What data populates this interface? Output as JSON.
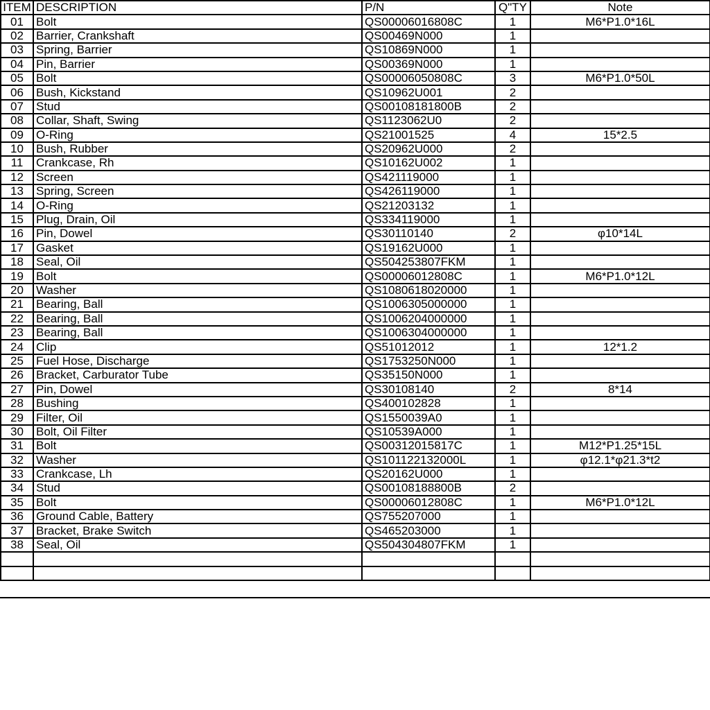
{
  "headers": {
    "item": "ITEM",
    "description": "DESCRIPTION",
    "pn": "P/N",
    "qty": "Q\"TY",
    "note": "Note"
  },
  "rows": [
    {
      "item": "01",
      "description": "Bolt",
      "pn": "QS00006016808C",
      "qty": "1",
      "note": "M6*P1.0*16L"
    },
    {
      "item": "02",
      "description": "Barrier, Crankshaft",
      "pn": "QS00469N000",
      "qty": "1",
      "note": ""
    },
    {
      "item": "03",
      "description": "Spring, Barrier",
      "pn": "QS10869N000",
      "qty": "1",
      "note": ""
    },
    {
      "item": "04",
      "description": "Pin, Barrier",
      "pn": "QS00369N000",
      "qty": "1",
      "note": ""
    },
    {
      "item": "05",
      "description": "Bolt",
      "pn": "QS00006050808C",
      "qty": "3",
      "note": "M6*P1.0*50L"
    },
    {
      "item": "06",
      "description": "Bush, Kickstand",
      "pn": "QS10962U001",
      "qty": "2",
      "note": ""
    },
    {
      "item": "07",
      "description": "Stud",
      "pn": "QS00108181800B",
      "qty": "2",
      "note": ""
    },
    {
      "item": "08",
      "description": "Collar, Shaft, Swing",
      "pn": "QS1123062U0",
      "qty": "2",
      "note": ""
    },
    {
      "item": "09",
      "description": "O-Ring",
      "pn": "QS21001525",
      "qty": "4",
      "note": "15*2.5"
    },
    {
      "item": "10",
      "description": "Bush, Rubber",
      "pn": "QS20962U000",
      "qty": "2",
      "note": ""
    },
    {
      "item": "11",
      "description": "Crankcase, Rh",
      "pn": "QS10162U002",
      "qty": "1",
      "note": ""
    },
    {
      "item": "12",
      "description": "Screen",
      "pn": "QS421119000",
      "qty": "1",
      "note": ""
    },
    {
      "item": "13",
      "description": "Spring, Screen",
      "pn": "QS426119000",
      "qty": "1",
      "note": ""
    },
    {
      "item": "14",
      "description": "O-Ring",
      "pn": "QS21203132",
      "qty": "1",
      "note": ""
    },
    {
      "item": "15",
      "description": "Plug, Drain, Oil",
      "pn": "QS334119000",
      "qty": "1",
      "note": ""
    },
    {
      "item": "16",
      "description": "Pin, Dowel",
      "pn": "QS30110140",
      "qty": "2",
      "note": "φ10*14L"
    },
    {
      "item": "17",
      "description": "Gasket",
      "pn": "QS19162U000",
      "qty": "1",
      "note": ""
    },
    {
      "item": "18",
      "description": "Seal, Oil",
      "pn": "QS504253807FKM",
      "qty": "1",
      "note": ""
    },
    {
      "item": "19",
      "description": "Bolt",
      "pn": "QS00006012808C",
      "qty": "1",
      "note": "M6*P1.0*12L"
    },
    {
      "item": "20",
      "description": "Washer",
      "pn": "QS1080618020000",
      "qty": "1",
      "note": ""
    },
    {
      "item": "21",
      "description": "Bearing, Ball",
      "pn": "QS1006305000000",
      "qty": "1",
      "note": ""
    },
    {
      "item": "22",
      "description": "Bearing, Ball",
      "pn": "QS1006204000000",
      "qty": "1",
      "note": ""
    },
    {
      "item": "23",
      "description": "Bearing, Ball",
      "pn": "QS1006304000000",
      "qty": "1",
      "note": ""
    },
    {
      "item": "24",
      "description": "Clip",
      "pn": "QS51012012",
      "qty": "1",
      "note": "12*1.2"
    },
    {
      "item": "25",
      "description": "Fuel Hose, Discharge",
      "pn": "QS1753250N000",
      "qty": "1",
      "note": ""
    },
    {
      "item": "26",
      "description": "Bracket, Carburator Tube",
      "pn": "QS35150N000",
      "qty": "1",
      "note": ""
    },
    {
      "item": "27",
      "description": "Pin, Dowel",
      "pn": "QS30108140",
      "qty": "2",
      "note": "8*14"
    },
    {
      "item": "28",
      "description": "Bushing",
      "pn": "QS400102828",
      "qty": "1",
      "note": ""
    },
    {
      "item": "29",
      "description": "Filter, Oil",
      "pn": "QS1550039A0",
      "qty": "1",
      "note": ""
    },
    {
      "item": "30",
      "description": "Bolt, Oil Filter",
      "pn": "QS10539A000",
      "qty": "1",
      "note": ""
    },
    {
      "item": "31",
      "description": "Bolt",
      "pn": "QS00312015817C",
      "qty": "1",
      "note": "M12*P1.25*15L"
    },
    {
      "item": "32",
      "description": "Washer",
      "pn": "QS101122132000L",
      "qty": "1",
      "note": "φ12.1*φ21.3*t2"
    },
    {
      "item": "33",
      "description": "Crankcase, Lh",
      "pn": "QS20162U000",
      "qty": "1",
      "note": ""
    },
    {
      "item": "34",
      "description": "Stud",
      "pn": "QS00108188800B",
      "qty": "2",
      "note": ""
    },
    {
      "item": "35",
      "description": "Bolt",
      "pn": "QS00006012808C",
      "qty": "1",
      "note": "M6*P1.0*12L"
    },
    {
      "item": "36",
      "description": "Ground Cable, Battery",
      "pn": "QS755207000",
      "qty": "1",
      "note": ""
    },
    {
      "item": "37",
      "description": "Bracket, Brake Switch",
      "pn": "QS465203000",
      "qty": "1",
      "note": ""
    },
    {
      "item": "38",
      "description": "Seal, Oil",
      "pn": "QS504304807FKM",
      "qty": "1",
      "note": ""
    },
    {
      "item": "",
      "description": "",
      "pn": "",
      "qty": "",
      "note": ""
    },
    {
      "item": "",
      "description": "",
      "pn": "",
      "qty": "",
      "note": ""
    }
  ]
}
